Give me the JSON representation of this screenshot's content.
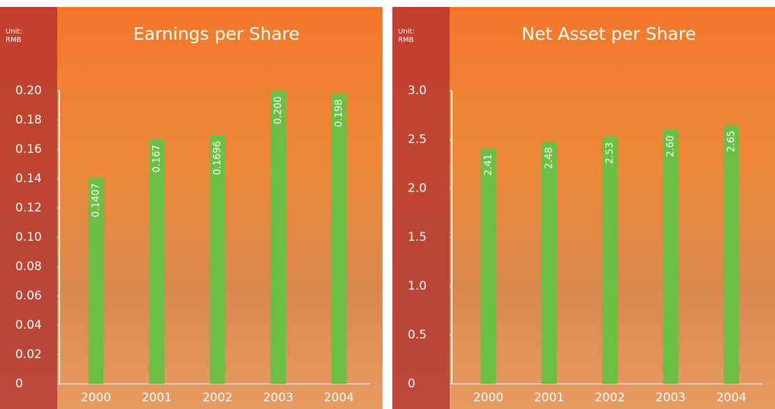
{
  "chart_data": [
    {
      "type": "bar",
      "title": "Earnings per Share",
      "unit_label": "Unit: RMB",
      "categories": [
        "2000",
        "2001",
        "2002",
        "2003",
        "2004"
      ],
      "values": [
        0.1407,
        0.167,
        0.1696,
        0.2,
        0.198
      ],
      "value_labels": [
        "0.1407",
        "0.167",
        "0.1696",
        "0.200",
        "0.198"
      ],
      "color": "#6cbf45",
      "ylim": [
        0,
        0.2
      ],
      "yticks": [
        0,
        {
          "value": 0.02,
          "label": "0.02"
        },
        {
          "value": 0.04,
          "label": "0.04"
        },
        {
          "value": 0.06,
          "label": "0.06"
        },
        {
          "value": 0.08,
          "label": "0.08"
        },
        {
          "value": 0.1,
          "label": "0.10"
        },
        {
          "value": 0.12,
          "label": "0.12"
        },
        {
          "value": 0.14,
          "label": "0.14"
        },
        {
          "value": 0.16,
          "label": "0.16"
        },
        {
          "value": 0.18,
          "label": "0.18"
        },
        {
          "value": 0.2,
          "label": "0.20"
        }
      ]
    },
    {
      "type": "bar",
      "title": "Net Asset per Share",
      "unit_label": "Unit: RMB",
      "categories": [
        "2000",
        "2001",
        "2002",
        "2003",
        "2004"
      ],
      "values": [
        2.41,
        2.48,
        2.53,
        2.6,
        2.65
      ],
      "value_labels": [
        "2.41",
        "2.48",
        "2.53",
        "2.60",
        "2.65"
      ],
      "color": "#6cbf45",
      "ylim": [
        0,
        3
      ],
      "yticks": [
        0,
        0.5,
        {
          "value": 1,
          "label": "1.0"
        },
        1.5,
        {
          "value": 2,
          "label": "2.0"
        },
        2.5,
        {
          "value": 3,
          "label": "3.0"
        }
      ]
    }
  ]
}
